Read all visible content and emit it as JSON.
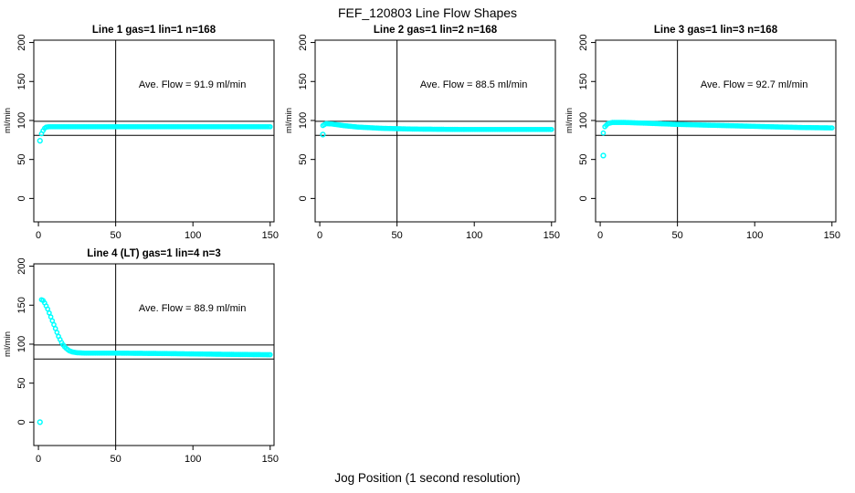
{
  "figure": {
    "title": "FEF_120803  Line Flow Shapes",
    "x_axis_label": "Jog Position (1 second resolution)",
    "background_color": "#ffffff",
    "point_color": "#00ffff",
    "axis_color": "#000000"
  },
  "chart_data": [
    {
      "type": "scatter",
      "title": "Line 1 gas=1 lin=1 n=168",
      "annotation": "Ave. Flow =  91.9  ml/min",
      "ave_flow_ml_min": 91.9,
      "n": 168,
      "ylabel": "ml/min",
      "x_ticks": [
        0,
        50,
        100,
        150
      ],
      "y_ticks": [
        0,
        50,
        100,
        150,
        200
      ],
      "xlim": [
        -3,
        152.5
      ],
      "ylim": [
        -30,
        203
      ],
      "ref_lines_y": [
        99,
        81
      ],
      "ref_line_x": 50,
      "grid": false,
      "outliers": [
        [
          1,
          74
        ]
      ],
      "curve_keypoints": [
        [
          2,
          83
        ],
        [
          3,
          87
        ],
        [
          4,
          90
        ],
        [
          5,
          91.5
        ],
        [
          7,
          92
        ],
        [
          150,
          92
        ]
      ],
      "x_start": 2,
      "x_end": 150,
      "x_step": 1
    },
    {
      "type": "scatter",
      "title": "Line 2 gas=1 lin=2 n=168",
      "annotation": "Ave. Flow =  88.5  ml/min",
      "ave_flow_ml_min": 88.5,
      "n": 168,
      "ylabel": "ml/min",
      "x_ticks": [
        0,
        50,
        100,
        150
      ],
      "y_ticks": [
        0,
        50,
        100,
        150,
        200
      ],
      "xlim": [
        -3,
        152.5
      ],
      "ylim": [
        -30,
        203
      ],
      "ref_lines_y": [
        99,
        81
      ],
      "ref_line_x": 50,
      "grid": false,
      "outliers": [
        [
          2,
          82
        ]
      ],
      "curve_keypoints": [
        [
          2,
          93.5
        ],
        [
          4,
          96
        ],
        [
          8,
          95.5
        ],
        [
          15,
          93.5
        ],
        [
          25,
          91.5
        ],
        [
          40,
          90
        ],
        [
          60,
          89
        ],
        [
          90,
          88.5
        ],
        [
          150,
          88.5
        ]
      ],
      "x_start": 2,
      "x_end": 150,
      "x_step": 1
    },
    {
      "type": "scatter",
      "title": "Line 3 gas=1 lin=3 n=168",
      "annotation": "Ave. Flow =  92.7  ml/min",
      "ave_flow_ml_min": 92.7,
      "n": 168,
      "ylabel": "ml/min",
      "x_ticks": [
        0,
        50,
        100,
        150
      ],
      "y_ticks": [
        0,
        50,
        100,
        150,
        200
      ],
      "xlim": [
        -3,
        152.5
      ],
      "ylim": [
        -30,
        203
      ],
      "ref_lines_y": [
        99,
        81
      ],
      "ref_line_x": 50,
      "grid": false,
      "outliers": [
        [
          2,
          55
        ]
      ],
      "curve_keypoints": [
        [
          2,
          84
        ],
        [
          3,
          92
        ],
        [
          5,
          96
        ],
        [
          8,
          97.5
        ],
        [
          15,
          97.5
        ],
        [
          30,
          96.5
        ],
        [
          50,
          95
        ],
        [
          70,
          94
        ],
        [
          90,
          93
        ],
        [
          110,
          92
        ],
        [
          130,
          91
        ],
        [
          150,
          90.5
        ]
      ],
      "x_start": 2,
      "x_end": 150,
      "x_step": 1
    },
    {
      "type": "scatter",
      "title": "Line 4 (LT) gas=1 lin=4 n=3",
      "annotation": "Ave. Flow =  88.9  ml/min",
      "ave_flow_ml_min": 88.9,
      "n": 3,
      "ylabel": "ml/min",
      "x_ticks": [
        0,
        50,
        100,
        150
      ],
      "y_ticks": [
        0,
        50,
        100,
        150,
        200
      ],
      "xlim": [
        -3,
        152.5
      ],
      "ylim": [
        -30,
        203
      ],
      "ref_lines_y": [
        99,
        81
      ],
      "ref_line_x": 50,
      "grid": false,
      "outliers": [
        [
          1,
          0
        ]
      ],
      "curve_keypoints": [
        [
          2,
          157
        ],
        [
          3,
          156
        ],
        [
          4,
          153
        ],
        [
          5,
          149
        ],
        [
          6,
          145
        ],
        [
          7,
          140
        ],
        [
          8,
          135
        ],
        [
          9,
          130
        ],
        [
          10,
          125
        ],
        [
          11,
          120
        ],
        [
          12,
          115
        ],
        [
          13,
          110
        ],
        [
          14,
          106
        ],
        [
          15,
          102
        ],
        [
          16,
          99
        ],
        [
          17,
          96.5
        ],
        [
          18,
          94.5
        ],
        [
          19,
          93
        ],
        [
          20,
          91.5
        ],
        [
          22,
          90
        ],
        [
          25,
          89
        ],
        [
          30,
          88.5
        ],
        [
          50,
          88.5
        ],
        [
          80,
          88
        ],
        [
          120,
          87
        ],
        [
          150,
          86.5
        ]
      ],
      "x_start": 2,
      "x_end": 150,
      "x_step": 1
    }
  ]
}
